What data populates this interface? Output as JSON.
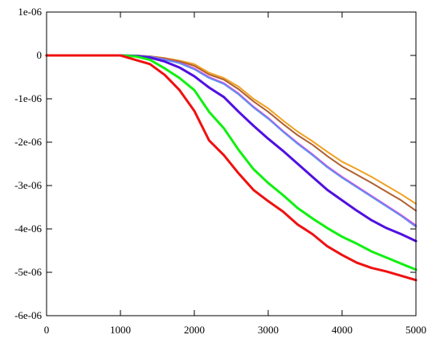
{
  "chart_data": {
    "type": "line",
    "title": "",
    "xlabel": "",
    "ylabel": "",
    "xlim": [
      0,
      5000
    ],
    "ylim": [
      -6e-06,
      1e-06
    ],
    "grid": false,
    "legend": "none",
    "x_ticks": [
      {
        "value": 0,
        "label": "0"
      },
      {
        "value": 1000,
        "label": "1000"
      },
      {
        "value": 2000,
        "label": "2000"
      },
      {
        "value": 3000,
        "label": "3000"
      },
      {
        "value": 4000,
        "label": "4000"
      },
      {
        "value": 5000,
        "label": "5000"
      }
    ],
    "y_ticks": [
      {
        "value": 1e-06,
        "label": "1e-06"
      },
      {
        "value": 0,
        "label": "0"
      },
      {
        "value": -1e-06,
        "label": "-1e-06"
      },
      {
        "value": -2e-06,
        "label": "-2e-06"
      },
      {
        "value": -3e-06,
        "label": "-3e-06"
      },
      {
        "value": -4e-06,
        "label": "-4e-06"
      },
      {
        "value": -5e-06,
        "label": "-5e-06"
      },
      {
        "value": -6e-06,
        "label": "-6e-06"
      }
    ],
    "x": [
      0,
      500,
      1000,
      1200,
      1400,
      1600,
      1800,
      2000,
      2200,
      2400,
      2600,
      2800,
      3000,
      3200,
      3400,
      3600,
      3800,
      4000,
      4200,
      4400,
      4600,
      4800,
      5000
    ],
    "series": [
      {
        "color": "#f0a020",
        "values": [
          0,
          0,
          0,
          0,
          -2e-08,
          -6e-08,
          -1.2e-07,
          -2e-07,
          -4e-07,
          -5.2e-07,
          -7.2e-07,
          -1e-06,
          -1.22e-06,
          -1.5e-06,
          -1.76e-06,
          -1.98e-06,
          -2.22e-06,
          -2.45e-06,
          -2.62e-06,
          -2.8e-06,
          -3e-06,
          -3.2e-06,
          -3.42e-06
        ]
      },
      {
        "color": "#b06030",
        "values": [
          0,
          0,
          0,
          0,
          -2e-08,
          -7e-08,
          -1.4e-07,
          -2.4e-07,
          -4.4e-07,
          -5.6e-07,
          -7.8e-07,
          -1.06e-06,
          -1.3e-06,
          -1.58e-06,
          -1.84e-06,
          -2.06e-06,
          -2.32e-06,
          -2.56e-06,
          -2.75e-06,
          -2.94e-06,
          -3.14e-06,
          -3.34e-06,
          -3.58e-06
        ]
      },
      {
        "color": "#e040e0",
        "values": [
          0,
          0,
          0,
          0,
          -3e-08,
          -9e-08,
          -1.7e-07,
          -3e-07,
          -5e-07,
          -6.4e-07,
          -8.8e-07,
          -1.18e-06,
          -1.44e-06,
          -1.74e-06,
          -2.02e-06,
          -2.28e-06,
          -2.56e-06,
          -2.8e-06,
          -3.02e-06,
          -3.24e-06,
          -3.46e-06,
          -3.68e-06,
          -3.92e-06
        ]
      },
      {
        "color": "#6090f0",
        "values": [
          0,
          0,
          0,
          0,
          -3e-08,
          -1e-07,
          -1.8e-07,
          -3.2e-07,
          -5.2e-07,
          -6.6e-07,
          -9e-07,
          -1.2e-06,
          -1.46e-06,
          -1.76e-06,
          -2.04e-06,
          -2.3e-06,
          -2.58e-06,
          -2.82e-06,
          -3.04e-06,
          -3.26e-06,
          -3.48e-06,
          -3.7e-06,
          -3.95e-06
        ]
      },
      {
        "color": "#5010e0",
        "values": [
          0,
          0,
          0,
          -1e-08,
          -5e-08,
          -1.4e-07,
          -2.8e-07,
          -4.8e-07,
          -7.4e-07,
          -9.6e-07,
          -1.3e-06,
          -1.62e-06,
          -1.92e-06,
          -2.2e-06,
          -2.5e-06,
          -2.8e-06,
          -3.1e-06,
          -3.34e-06,
          -3.58e-06,
          -3.8e-06,
          -3.98e-06,
          -4.12e-06,
          -4.28e-06
        ]
      },
      {
        "color": "#10f010",
        "values": [
          0,
          0,
          0,
          -2e-08,
          -1e-07,
          -3e-07,
          -5.2e-07,
          -8e-07,
          -1.3e-06,
          -1.68e-06,
          -2.18e-06,
          -2.62e-06,
          -2.94e-06,
          -3.22e-06,
          -3.52e-06,
          -3.76e-06,
          -3.98e-06,
          -4.18e-06,
          -4.34e-06,
          -4.52e-06,
          -4.66e-06,
          -4.8e-06,
          -4.94e-06
        ]
      },
      {
        "color": "#f01010",
        "values": [
          0,
          0,
          0,
          -1e-07,
          -2e-07,
          -4.5e-07,
          -8e-07,
          -1.28e-06,
          -1.96e-06,
          -2.3e-06,
          -2.72e-06,
          -3.1e-06,
          -3.36e-06,
          -3.6e-06,
          -3.9e-06,
          -4.12e-06,
          -4.4e-06,
          -4.6e-06,
          -4.78e-06,
          -4.9e-06,
          -4.98e-06,
          -5.08e-06,
          -5.18e-06
        ]
      }
    ]
  }
}
